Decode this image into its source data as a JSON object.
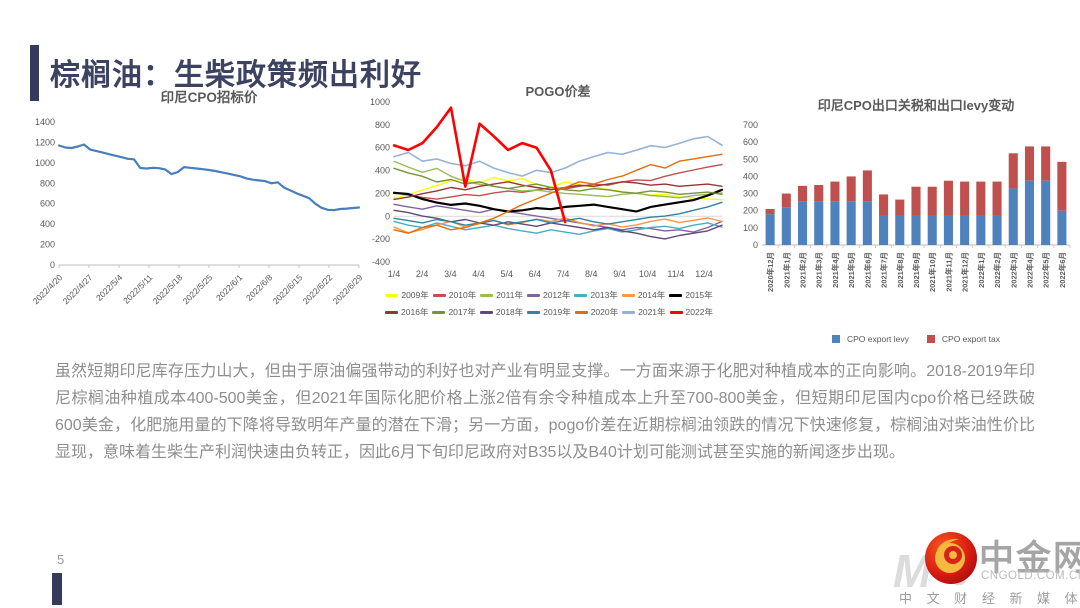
{
  "slide": {
    "title": "棕榈油：生柴政策频出利好",
    "page_number": "5",
    "accent_color": "#343A5C",
    "body_text": "虽然短期印尼库存压力山大，但由于原油偏强带动的利好也对产业有明显支撑。一方面来源于化肥对种植成本的正向影响。2018-2019年印尼棕榈油种植成本400-500美金，但2021年国际化肥价格上涨2倍有余令种植成本上升至700-800美金，但短期印尼国内cpo价格已经跌破600美金，化肥施用量的下降将导致明年产量的潜在下滑；另一方面，pogo价差在近期棕榈油领跌的情况下快速修复，棕榈油对柴油性价比显现，意味着生柴生产利润快速由负转正，因此6月下旬印尼政府对B35以及B40计划可能测试甚至实施的新闻逐步出现。"
  },
  "logo": {
    "brand": "中金网",
    "domain": "CNGOLD.COM.CN",
    "tagline": "中 文 财 经 新 媒 体",
    "watermark_left": "M",
    "watermark_right": "e",
    "circle_color": "#D7160F",
    "swirl_color": "#F6B93F"
  },
  "chart_data": [
    {
      "type": "line",
      "name": "indonesia-cpo-tender-price",
      "title": "印尼CPO招标价",
      "x_labels": [
        "2022/4/20",
        "2022/4/27",
        "2022/5/4",
        "2022/5/11",
        "2022/5/18",
        "2022/5/25",
        "2022/6/1",
        "2022/6/8",
        "2022/6/15",
        "2022/6/22",
        "2022/6/29"
      ],
      "ylim": [
        0,
        1400
      ],
      "yticks": [
        1400,
        1200,
        1000,
        800,
        600,
        400,
        200,
        0
      ],
      "grid": false,
      "series": [
        {
          "name": "印尼CPO招标价",
          "color": "#4A7EBB",
          "width": 2.2,
          "values": [
            1170,
            1150,
            1145,
            1160,
            1180,
            1130,
            1115,
            1100,
            1085,
            1070,
            1055,
            1040,
            1035,
            950,
            945,
            952,
            948,
            935,
            890,
            910,
            958,
            952,
            945,
            938,
            930,
            920,
            908,
            895,
            882,
            868,
            848,
            835,
            828,
            820,
            800,
            810,
            758,
            730,
            702,
            678,
            655,
            600,
            560,
            540,
            537,
            548,
            552,
            558,
            563
          ]
        }
      ]
    },
    {
      "type": "line",
      "name": "pogo-price-spread",
      "title": "POGO价差",
      "x_labels": [
        "1/4",
        "2/4",
        "3/4",
        "4/4",
        "5/4",
        "6/4",
        "7/4",
        "8/4",
        "9/4",
        "10/4",
        "11/4",
        "12/4"
      ],
      "ylim": [
        -400,
        1000
      ],
      "yticks": [
        1000,
        800,
        600,
        400,
        200,
        0,
        -200,
        -400
      ],
      "grid": false,
      "legend_position": "bottom",
      "series": [
        {
          "name": "2009年",
          "color": "#FFFF00",
          "width": 1.4,
          "values": [
            160,
            190,
            230,
            270,
            310,
            330,
            290,
            340,
            310,
            330,
            280,
            255,
            300,
            275,
            255,
            235,
            215,
            200,
            185,
            190,
            170,
            160,
            150,
            145
          ]
        },
        {
          "name": "2010年",
          "color": "#C0504D",
          "width": 1.4,
          "values": [
            210,
            185,
            165,
            150,
            170,
            190,
            180,
            205,
            220,
            210,
            230,
            250,
            240,
            262,
            280,
            272,
            300,
            318,
            312,
            350,
            380,
            405,
            430,
            452
          ]
        },
        {
          "name": "2011年",
          "color": "#9BBB59",
          "width": 1.4,
          "values": [
            480,
            430,
            385,
            420,
            350,
            305,
            280,
            262,
            242,
            222,
            230,
            212,
            200,
            192,
            182,
            172,
            192,
            202,
            182,
            172,
            162,
            182,
            192,
            205
          ]
        },
        {
          "name": "2012年",
          "color": "#8064A2",
          "width": 1.4,
          "values": [
            105,
            82,
            62,
            92,
            72,
            52,
            32,
            62,
            42,
            22,
            2,
            -18,
            -38,
            -58,
            -78,
            -98,
            -118,
            -98,
            -108,
            -128,
            -118,
            -138,
            -98,
            -45
          ]
        },
        {
          "name": "2013年",
          "color": "#4BACC6",
          "width": 1.4,
          "values": [
            -45,
            -78,
            -98,
            -58,
            -88,
            -118,
            -98,
            -78,
            -108,
            -128,
            -148,
            -118,
            -138,
            -158,
            -128,
            -108,
            -138,
            -118,
            -98,
            -88,
            -108,
            -78,
            -58,
            -95
          ]
        },
        {
          "name": "2014年",
          "color": "#F79646",
          "width": 1.4,
          "values": [
            -95,
            -145,
            -115,
            -75,
            -45,
            -95,
            -65,
            -35,
            -75,
            -55,
            -25,
            -45,
            -15,
            -55,
            -85,
            -65,
            -95,
            -75,
            -45,
            -25,
            -55,
            -35,
            -15,
            -45
          ]
        },
        {
          "name": "2015年",
          "color": "#000000",
          "width": 2.2,
          "values": [
            205,
            195,
            150,
            120,
            100,
            112,
            92,
            62,
            42,
            52,
            72,
            62,
            82,
            92,
            102,
            82,
            62,
            42,
            82,
            102,
            122,
            142,
            182,
            232
          ]
        },
        {
          "name": "2016年",
          "color": "#963634",
          "width": 1.4,
          "values": [
            148,
            168,
            198,
            222,
            252,
            232,
            262,
            282,
            302,
            272,
            252,
            232,
            252,
            272,
            262,
            282,
            302,
            292,
            272,
            282,
            262,
            272,
            282,
            262
          ]
        },
        {
          "name": "2017年",
          "color": "#77933C",
          "width": 1.4,
          "values": [
            420,
            380,
            350,
            300,
            322,
            282,
            302,
            262,
            242,
            262,
            282,
            252,
            232,
            222,
            242,
            232,
            212,
            202,
            222,
            212,
            192,
            202,
            212,
            192
          ]
        },
        {
          "name": "2018年",
          "color": "#60497A",
          "width": 1.4,
          "values": [
            52,
            32,
            2,
            -18,
            -48,
            -28,
            -58,
            -78,
            -48,
            -68,
            -88,
            -58,
            -78,
            -98,
            -118,
            -98,
            -128,
            -148,
            -178,
            -198,
            -168,
            -148,
            -128,
            -78
          ]
        },
        {
          "name": "2019年",
          "color": "#31859C",
          "width": 1.4,
          "values": [
            -18,
            -38,
            -58,
            -28,
            -48,
            -78,
            -58,
            -38,
            -68,
            -48,
            -28,
            -58,
            -38,
            -18,
            -48,
            -68,
            -48,
            -28,
            -8,
            2,
            22,
            52,
            82,
            122
          ]
        },
        {
          "name": "2020年",
          "color": "#E46C0A",
          "width": 1.4,
          "values": [
            -118,
            -148,
            -98,
            -78,
            -118,
            -98,
            -58,
            -18,
            42,
            102,
            152,
            202,
            252,
            302,
            282,
            322,
            352,
            402,
            452,
            422,
            482,
            502,
            522,
            542
          ]
        },
        {
          "name": "2021年",
          "color": "#95B3D7",
          "width": 1.6,
          "values": [
            522,
            558,
            482,
            502,
            462,
            442,
            482,
            422,
            382,
            352,
            402,
            382,
            422,
            482,
            522,
            558,
            542,
            578,
            618,
            602,
            638,
            678,
            698,
            622
          ]
        },
        {
          "name": "2022年",
          "color": "#FF0000",
          "width": 2.6,
          "values": [
            620,
            580,
            640,
            780,
            950,
            260,
            810,
            700,
            580,
            640,
            600,
            400,
            -50,
            null,
            null,
            null,
            null,
            null,
            null,
            null,
            null,
            null,
            null,
            null
          ]
        }
      ]
    },
    {
      "type": "bar",
      "name": "indonesia-cpo-export-tax-levy",
      "title": "印尼CPO出口关税和出口levy变动",
      "categories": [
        "2020年12月",
        "2021年1月",
        "2021年2月",
        "2021年3月",
        "2021年4月",
        "2021年5月",
        "2021年6月",
        "2021年7月",
        "2021年8月",
        "2021年9月",
        "2021年10月",
        "2021年11月",
        "2021年12月",
        "2022年1月",
        "2022年2月",
        "2022年3月",
        "2022年4月",
        "2022年5月",
        "2022年6月"
      ],
      "ylim": [
        0,
        700
      ],
      "yticks": [
        700,
        600,
        500,
        400,
        300,
        200,
        100,
        0
      ],
      "grid": false,
      "stacked": true,
      "legend_position": "bottom",
      "series": [
        {
          "name": "CPO export levy",
          "color": "#4F81BD",
          "values": [
            180,
            220,
            255,
            255,
            255,
            255,
            255,
            175,
            175,
            175,
            175,
            175,
            175,
            175,
            175,
            330,
            375,
            375,
            200
          ]
        },
        {
          "name": "CPO export tax",
          "color": "#C0504D",
          "values": [
            30,
            80,
            90,
            95,
            115,
            145,
            180,
            120,
            90,
            165,
            165,
            200,
            195,
            195,
            195,
            205,
            200,
            200,
            285
          ]
        }
      ]
    }
  ]
}
